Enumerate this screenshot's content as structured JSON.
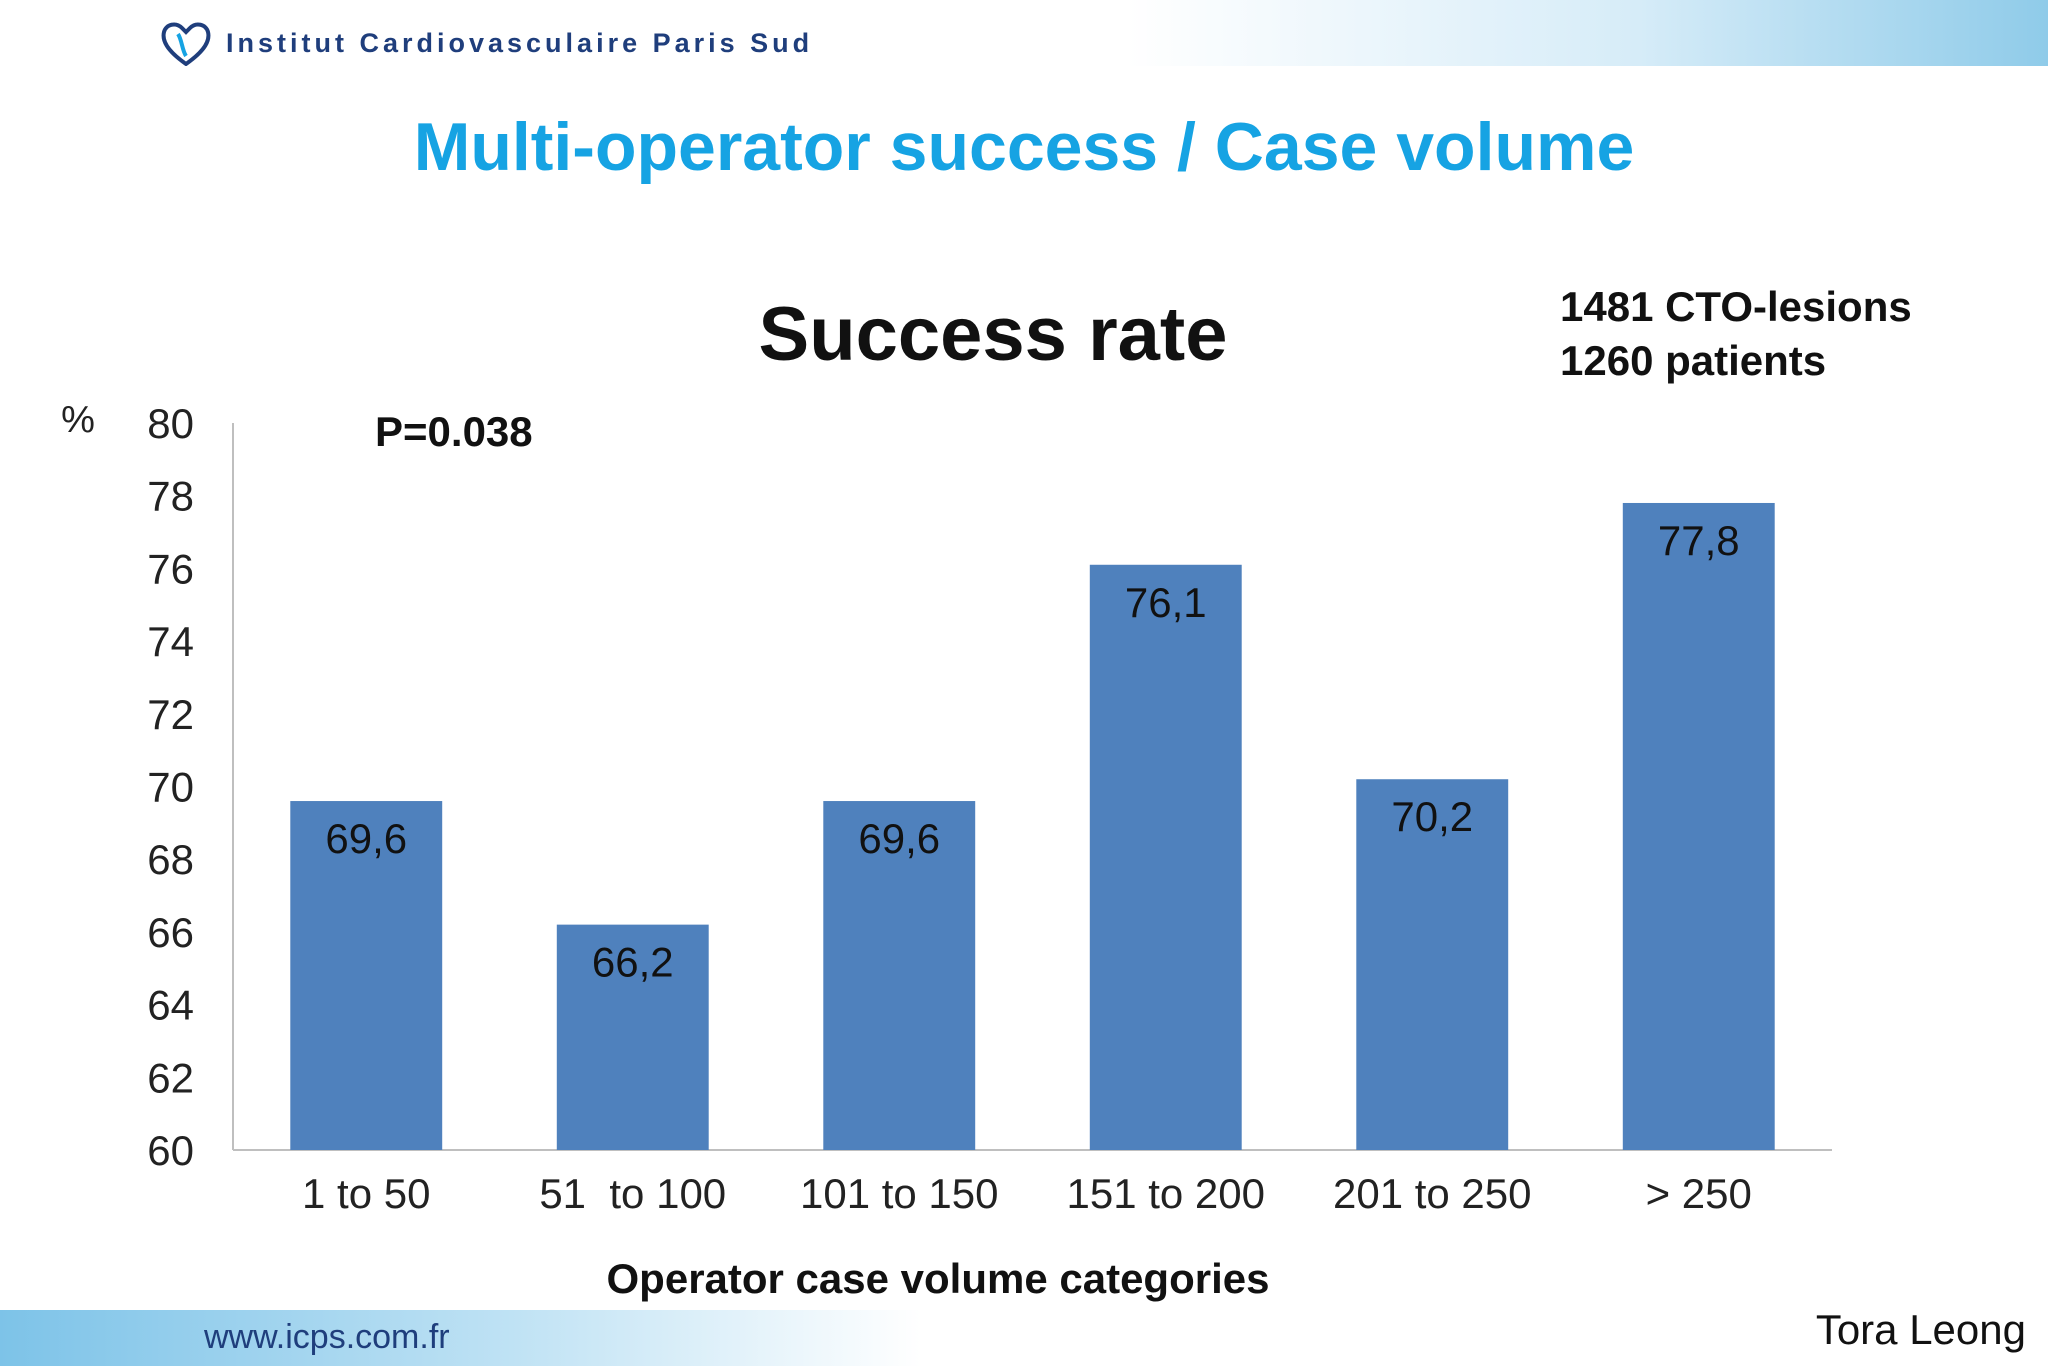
{
  "header": {
    "institute_name": "Institut Cardiovasculaire Paris Sud",
    "logo_icon": "heart-logo-icon",
    "slide_title": "Multi-operator success / Case volume"
  },
  "stats": {
    "lesions": "1481 CTO-lesions",
    "patients": "1260 patients"
  },
  "footer": {
    "website": "www.icps.com.fr",
    "author": "Tora Leong"
  },
  "colors": {
    "title_blue": "#16a3e3",
    "bar_fill": "#4f81bd",
    "institute_navy": "#1f3e7c"
  },
  "chart_data": {
    "type": "bar",
    "title": "Success rate",
    "annotation": "P=0.038",
    "ylabel": "%",
    "xlabel": "Operator case volume categories",
    "categories": [
      "1 to 50",
      "51  to 100",
      "101 to 150",
      "151 to 200",
      "201 to 250",
      "> 250"
    ],
    "values": [
      69.6,
      66.2,
      69.6,
      76.1,
      70.2,
      77.8
    ],
    "value_labels": [
      "69,6",
      "66,2",
      "69,6",
      "76,1",
      "70,2",
      "77,8"
    ],
    "ylim": [
      60,
      80
    ],
    "yticks": [
      60,
      62,
      64,
      66,
      68,
      70,
      72,
      74,
      76,
      78,
      80
    ],
    "grid": false,
    "legend": "none"
  }
}
